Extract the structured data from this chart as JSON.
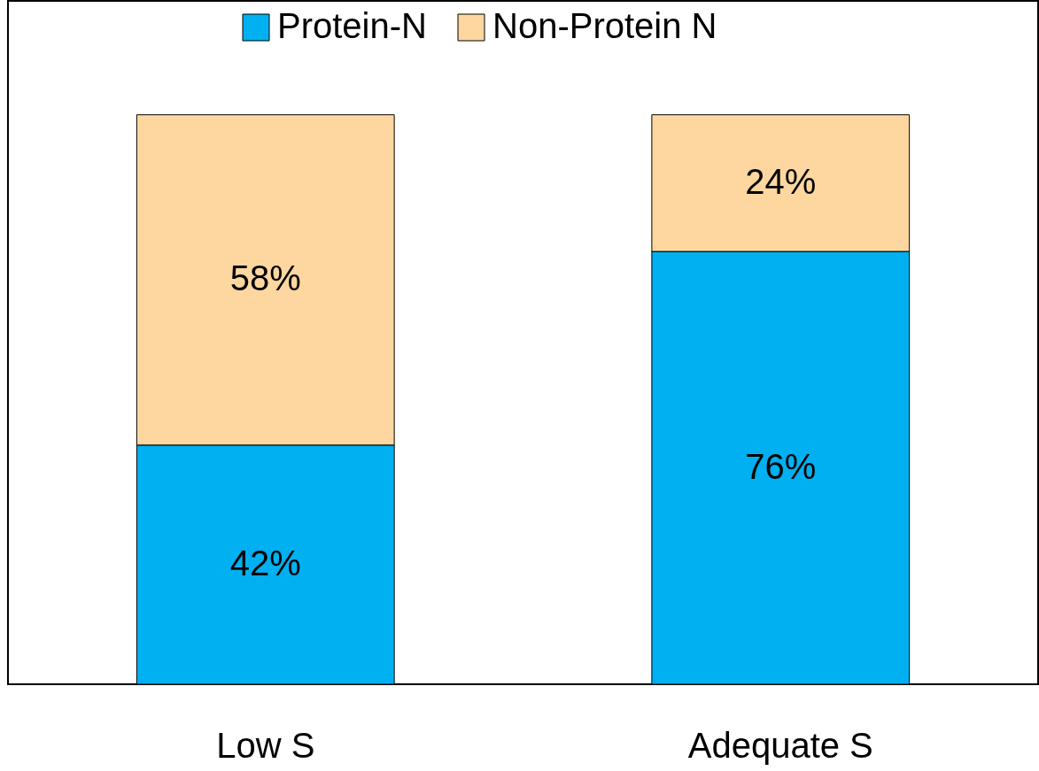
{
  "chart_data": {
    "type": "bar",
    "stacked": true,
    "categories": [
      "Low S",
      "Adequate S"
    ],
    "series": [
      {
        "name": "Protein-N",
        "color": "#00b0f0",
        "values": [
          42,
          76
        ],
        "value_labels": [
          "42%",
          "76%"
        ]
      },
      {
        "name": "Non-Protein N",
        "color": "#fdd79f",
        "values": [
          58,
          24
        ],
        "value_labels": [
          "58%",
          "24%"
        ]
      }
    ],
    "ylim": [
      0,
      120
    ],
    "tick_labels": "x",
    "grid": false,
    "legend": "top"
  }
}
